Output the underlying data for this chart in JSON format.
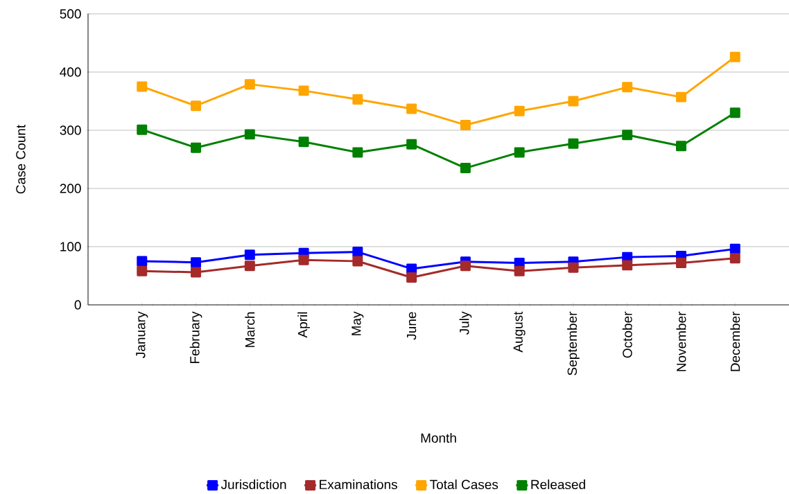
{
  "chart_data": {
    "type": "line",
    "xlabel": "Month",
    "ylabel": "Case Count",
    "categories": [
      "January",
      "February",
      "March",
      "April",
      "May",
      "June",
      "July",
      "August",
      "September",
      "October",
      "November",
      "December"
    ],
    "series": [
      {
        "name": "Jurisdiction",
        "color": "#0000ff",
        "values": [
          75,
          73,
          86,
          89,
          91,
          62,
          74,
          72,
          74,
          82,
          84,
          96
        ]
      },
      {
        "name": "Examinations",
        "color": "#a52a2a",
        "values": [
          58,
          56,
          67,
          77,
          75,
          47,
          67,
          58,
          64,
          68,
          72,
          80
        ]
      },
      {
        "name": "Total Cases",
        "color": "#ffa500",
        "values": [
          375,
          342,
          379,
          368,
          353,
          337,
          309,
          333,
          350,
          374,
          357,
          426
        ]
      },
      {
        "name": "Released",
        "color": "#008000",
        "values": [
          301,
          270,
          293,
          280,
          262,
          276,
          235,
          262,
          277,
          292,
          273,
          330
        ]
      }
    ],
    "ylim": [
      0,
      500
    ],
    "yticks": [
      0,
      100,
      200,
      300,
      400,
      500
    ],
    "grid": "y",
    "legend": "bottom",
    "marker": "square",
    "line_style": "solid"
  }
}
